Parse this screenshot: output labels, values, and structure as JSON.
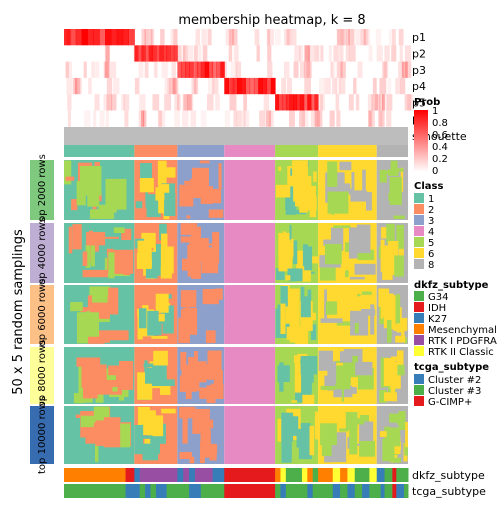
{
  "chart_data": {
    "type": "heatmap",
    "title": "membership heatmap, k = 8",
    "ylabel": "50 x 5 random samplings",
    "membership_rows": [
      "p1",
      "p2",
      "p3",
      "p4",
      "p5",
      "p6"
    ],
    "silhouette_label": "silhouette",
    "class_label": "Class",
    "column_groups": [
      {
        "class": "1",
        "width": 18
      },
      {
        "class": "2",
        "width": 11
      },
      {
        "class": "3",
        "width": 12
      },
      {
        "class": "4",
        "width": 13
      },
      {
        "class": "5",
        "width": 11
      },
      {
        "class": "6",
        "width": 15
      },
      {
        "class": "8",
        "width": 8
      }
    ],
    "row_blocks": [
      {
        "label": "top 2000 rows",
        "color": "#7fc97f"
      },
      {
        "label": "top 4000 rows",
        "color": "#beaed4"
      },
      {
        "label": "top 6000 rows",
        "color": "#fdc086"
      },
      {
        "label": "top 8000 rows",
        "color": "#ffff99"
      },
      {
        "label": "top 10000 rows",
        "color": "#386cb0"
      }
    ],
    "legend_prob": {
      "title": "Prob",
      "ticks": [
        "1",
        "0.8",
        "0.6",
        "0.4",
        "0.2",
        "0"
      ]
    },
    "legend_class": {
      "title": "Class",
      "items": [
        {
          "label": "1",
          "color": "#66c2a5"
        },
        {
          "label": "2",
          "color": "#fc8d62"
        },
        {
          "label": "3",
          "color": "#8da0cb"
        },
        {
          "label": "4",
          "color": "#e78ac3"
        },
        {
          "label": "5",
          "color": "#a6d854"
        },
        {
          "label": "6",
          "color": "#ffd92f"
        },
        {
          "label": "8",
          "color": "#b3b3b3"
        }
      ]
    },
    "legend_dkfz": {
      "title": "dkfz_subtype",
      "items": [
        {
          "label": "G34",
          "color": "#4daf4a"
        },
        {
          "label": "IDH",
          "color": "#e41a1c"
        },
        {
          "label": "K27",
          "color": "#377eb8"
        },
        {
          "label": "Mesenchymal",
          "color": "#ff7f00"
        },
        {
          "label": "RTK I PDGFRA",
          "color": "#984ea3"
        },
        {
          "label": "RTK II Classic",
          "color": "#ffff33"
        }
      ]
    },
    "legend_tcga": {
      "title": "tcga_subtype",
      "items": [
        {
          "label": "Cluster #2",
          "color": "#377eb8"
        },
        {
          "label": "Cluster #3",
          "color": "#4daf4a"
        },
        {
          "label": "G-CIMP+",
          "color": "#e41a1c"
        }
      ]
    },
    "bottom_annotations": [
      "dkfz_subtype",
      "tcga_subtype"
    ]
  }
}
